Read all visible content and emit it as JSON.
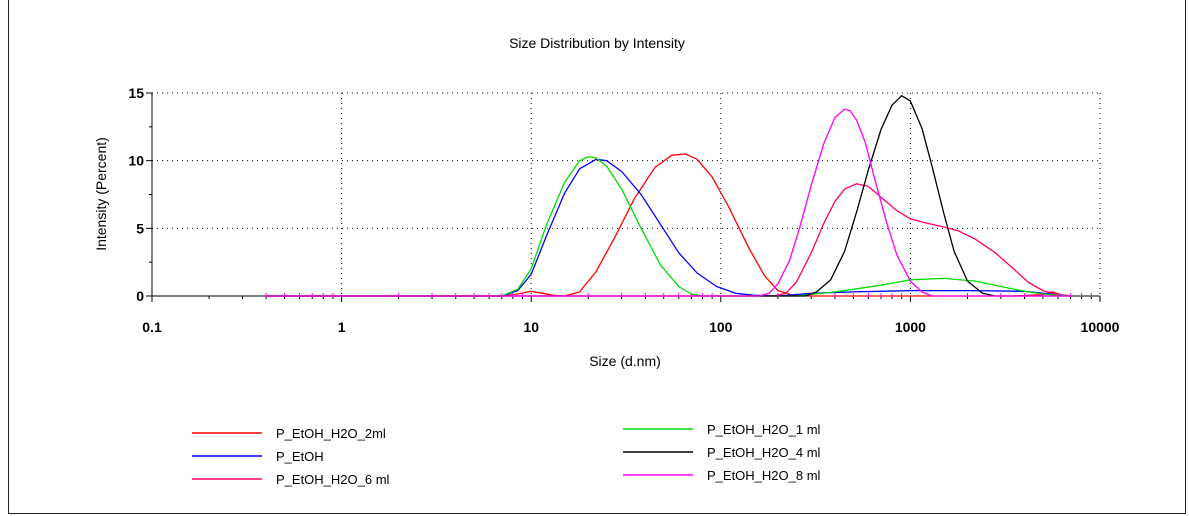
{
  "chart_data": {
    "type": "line",
    "title": "Size Distribution by Intensity",
    "xlabel": "Size (d.nm)",
    "ylabel": "Intensity (Percent)",
    "x_scale": "log",
    "xlim": [
      0.1,
      10000
    ],
    "ylim": [
      0,
      15
    ],
    "x_ticks": [
      0.1,
      1,
      10,
      100,
      1000,
      10000
    ],
    "x_tick_labels": [
      "0.1",
      "1",
      "10",
      "100",
      "1000",
      "10000"
    ],
    "y_ticks": [
      0,
      5,
      10,
      15
    ],
    "y_tick_labels": [
      "0",
      "5",
      "10",
      "15"
    ],
    "grid": true,
    "legend_position": "bottom",
    "series": [
      {
        "name": "P_EtOH_H2O_2ml",
        "color": "#ff0000",
        "x": [
          0.4,
          7,
          8.5,
          10,
          11.5,
          13,
          15,
          18,
          22,
          28,
          35,
          45,
          55,
          65,
          75,
          90,
          110,
          140,
          170,
          200,
          240,
          300,
          400,
          600,
          1000,
          2000,
          3500,
          5000,
          5600,
          6200,
          7000
        ],
        "y": [
          0,
          0,
          0.15,
          0.35,
          0.2,
          0.05,
          0,
          0.3,
          1.8,
          4.5,
          7.2,
          9.5,
          10.4,
          10.5,
          10.1,
          8.8,
          6.6,
          3.6,
          1.5,
          0.4,
          0.05,
          0,
          0,
          0,
          0,
          0,
          0,
          0.1,
          0.3,
          0.1,
          0
        ]
      },
      {
        "name": "P_EtOH",
        "color": "#0000ff",
        "x": [
          0.4,
          7,
          8.5,
          10,
          12,
          15,
          18,
          22,
          25,
          30,
          38,
          48,
          60,
          75,
          95,
          120,
          150,
          200,
          300,
          500,
          1000,
          2000,
          4000,
          5500,
          6500,
          7000
        ],
        "y": [
          0,
          0,
          0.4,
          1.6,
          4.4,
          7.6,
          9.4,
          10.1,
          10.0,
          9.2,
          7.5,
          5.3,
          3.2,
          1.7,
          0.7,
          0.2,
          0.05,
          0,
          0.2,
          0.3,
          0.4,
          0.4,
          0.35,
          0.15,
          0.05,
          0
        ]
      },
      {
        "name": "P_EtOH_H2O_6 ml",
        "color": "#ff0066",
        "x": [
          0.4,
          190,
          220,
          250,
          300,
          350,
          400,
          450,
          520,
          600,
          700,
          850,
          1000,
          1200,
          1500,
          1800,
          2200,
          2800,
          3500,
          4200,
          5000,
          6000,
          7000
        ],
        "y": [
          0,
          0,
          0.2,
          1.0,
          3.2,
          5.4,
          7.0,
          7.9,
          8.3,
          8.1,
          7.3,
          6.3,
          5.7,
          5.4,
          5.1,
          4.8,
          4.2,
          3.2,
          2.0,
          1.0,
          0.4,
          0.1,
          0
        ]
      },
      {
        "name": "P_EtOH_H2O_1 ml",
        "color": "#00dd00",
        "x": [
          0.4,
          7,
          8.5,
          10,
          12,
          15,
          18,
          20,
          22,
          25,
          30,
          38,
          48,
          60,
          70,
          80,
          100,
          250,
          400,
          700,
          1000,
          1500,
          2200,
          3000,
          4000,
          5000,
          6000,
          7000
        ],
        "y": [
          0,
          0,
          0.5,
          2.0,
          5.2,
          8.4,
          10.0,
          10.3,
          10.2,
          9.6,
          7.9,
          5.0,
          2.3,
          0.7,
          0.15,
          0,
          0,
          0,
          0.3,
          0.8,
          1.2,
          1.3,
          1.1,
          0.7,
          0.35,
          0.15,
          0.05,
          0
        ]
      },
      {
        "name": "P_EtOH_H2O_4 ml",
        "color": "#000000",
        "x": [
          0.4,
          280,
          320,
          380,
          450,
          520,
          600,
          700,
          800,
          900,
          1000,
          1150,
          1300,
          1500,
          1700,
          2000,
          2400,
          2800,
          7000
        ],
        "y": [
          0,
          0,
          0.3,
          1.2,
          3.3,
          6.2,
          9.3,
          12.3,
          14.1,
          14.8,
          14.4,
          12.4,
          9.6,
          6.1,
          3.3,
          1.1,
          0.2,
          0,
          0
        ]
      },
      {
        "name": "P_EtOH_H2O_8 ml",
        "color": "#ff00ff",
        "x": [
          0.4,
          160,
          180,
          200,
          230,
          260,
          300,
          350,
          400,
          450,
          480,
          520,
          580,
          650,
          750,
          850,
          1000,
          1150,
          1300,
          7000
        ],
        "y": [
          0,
          0,
          0.2,
          0.9,
          2.6,
          5.0,
          8.2,
          11.3,
          13.2,
          13.8,
          13.7,
          13.0,
          11.3,
          8.6,
          5.4,
          3.0,
          1.1,
          0.3,
          0,
          0
        ]
      }
    ]
  }
}
